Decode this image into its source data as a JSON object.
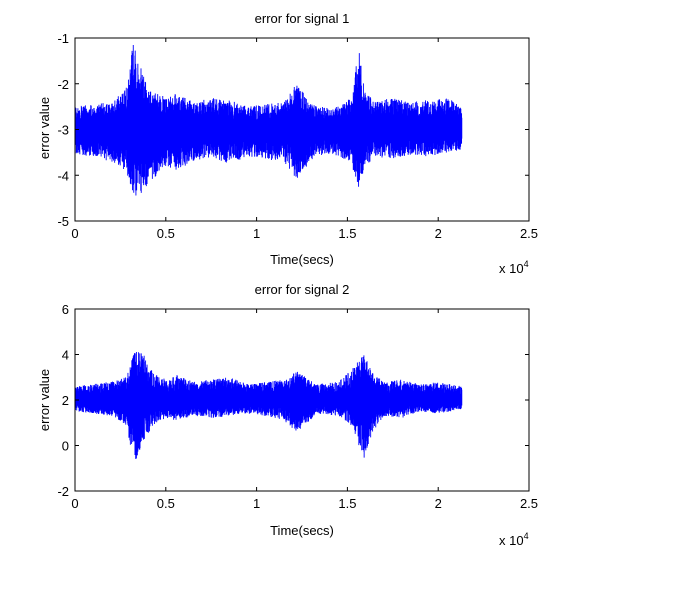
{
  "chart_data": [
    {
      "type": "line",
      "title": "error for signal 1",
      "xlabel": "Time(secs)",
      "ylabel": "error value",
      "xlim": [
        0,
        25000
      ],
      "ylim": [
        -5,
        -1
      ],
      "xticks": [
        0,
        5000,
        10000,
        15000,
        20000,
        25000
      ],
      "xtick_labels": [
        "0",
        "0.5",
        "1",
        "1.5",
        "2",
        "2.5"
      ],
      "yticks": [
        -5,
        -4,
        -3,
        -2,
        -1
      ],
      "ytick_labels": [
        "-5",
        "-4",
        "-3",
        "-2",
        "-1"
      ],
      "x_exponent_base": "x 10",
      "x_exponent_power": "4",
      "grid": false,
      "line_color": "#0000ff",
      "series": [
        {
          "baseline": -3.0,
          "x": [
            0,
            1000,
            2000,
            2800,
            3200,
            3500,
            4000,
            5000,
            5600,
            6500,
            7500,
            8500,
            9500,
            10500,
            11500,
            12200,
            12600,
            13300,
            14500,
            15200,
            15600,
            16000,
            16500,
            17500,
            18500,
            19500,
            20500,
            21300
          ],
          "upper": [
            -2.5,
            -2.45,
            -2.4,
            -2.1,
            -1.0,
            -1.5,
            -2.1,
            -2.3,
            -2.2,
            -2.4,
            -2.3,
            -2.35,
            -2.5,
            -2.45,
            -2.4,
            -2.0,
            -2.2,
            -2.5,
            -2.5,
            -2.3,
            -1.2,
            -2.1,
            -2.4,
            -2.3,
            -2.4,
            -2.35,
            -2.3,
            -2.5
          ],
          "lower": [
            -3.55,
            -3.6,
            -3.7,
            -3.9,
            -4.4,
            -4.5,
            -4.2,
            -3.8,
            -3.9,
            -3.7,
            -3.6,
            -3.75,
            -3.6,
            -3.65,
            -3.7,
            -4.1,
            -3.9,
            -3.55,
            -3.6,
            -3.7,
            -4.3,
            -3.8,
            -3.6,
            -3.65,
            -3.55,
            -3.6,
            -3.5,
            -3.45
          ]
        }
      ]
    },
    {
      "type": "line",
      "title": "error for signal 2",
      "xlabel": "Time(secs)",
      "ylabel": "error value",
      "xlim": [
        0,
        25000
      ],
      "ylim": [
        -2,
        6
      ],
      "xticks": [
        0,
        5000,
        10000,
        15000,
        20000,
        25000
      ],
      "xtick_labels": [
        "0",
        "0.5",
        "1",
        "1.5",
        "2",
        "2.5"
      ],
      "yticks": [
        -2,
        0,
        2,
        4,
        6
      ],
      "ytick_labels": [
        "-2",
        "0",
        "2",
        "4",
        "6"
      ],
      "x_exponent_base": "x 10",
      "x_exponent_power": "4",
      "grid": false,
      "line_color": "#0000ff",
      "series": [
        {
          "baseline": 2.0,
          "x": [
            0,
            1000,
            2000,
            2800,
            3300,
            3800,
            4300,
            5000,
            5600,
            6500,
            7500,
            8500,
            9500,
            10500,
            11500,
            12200,
            12700,
            13300,
            14500,
            15300,
            15900,
            16400,
            17000,
            18000,
            19000,
            20000,
            21300
          ],
          "upper": [
            2.6,
            2.7,
            2.8,
            3.0,
            4.3,
            4.0,
            3.2,
            2.9,
            3.1,
            2.8,
            2.9,
            3.0,
            2.7,
            2.8,
            2.9,
            3.3,
            3.0,
            2.7,
            2.8,
            3.4,
            4.1,
            3.2,
            2.8,
            2.9,
            2.7,
            2.8,
            2.6
          ],
          "lower": [
            1.5,
            1.4,
            1.3,
            0.9,
            -0.9,
            0.2,
            0.9,
            1.2,
            1.1,
            1.3,
            1.2,
            1.3,
            1.4,
            1.3,
            1.1,
            0.6,
            0.9,
            1.4,
            1.3,
            0.8,
            -0.7,
            0.6,
            1.3,
            1.2,
            1.5,
            1.4,
            1.6
          ]
        }
      ]
    }
  ]
}
